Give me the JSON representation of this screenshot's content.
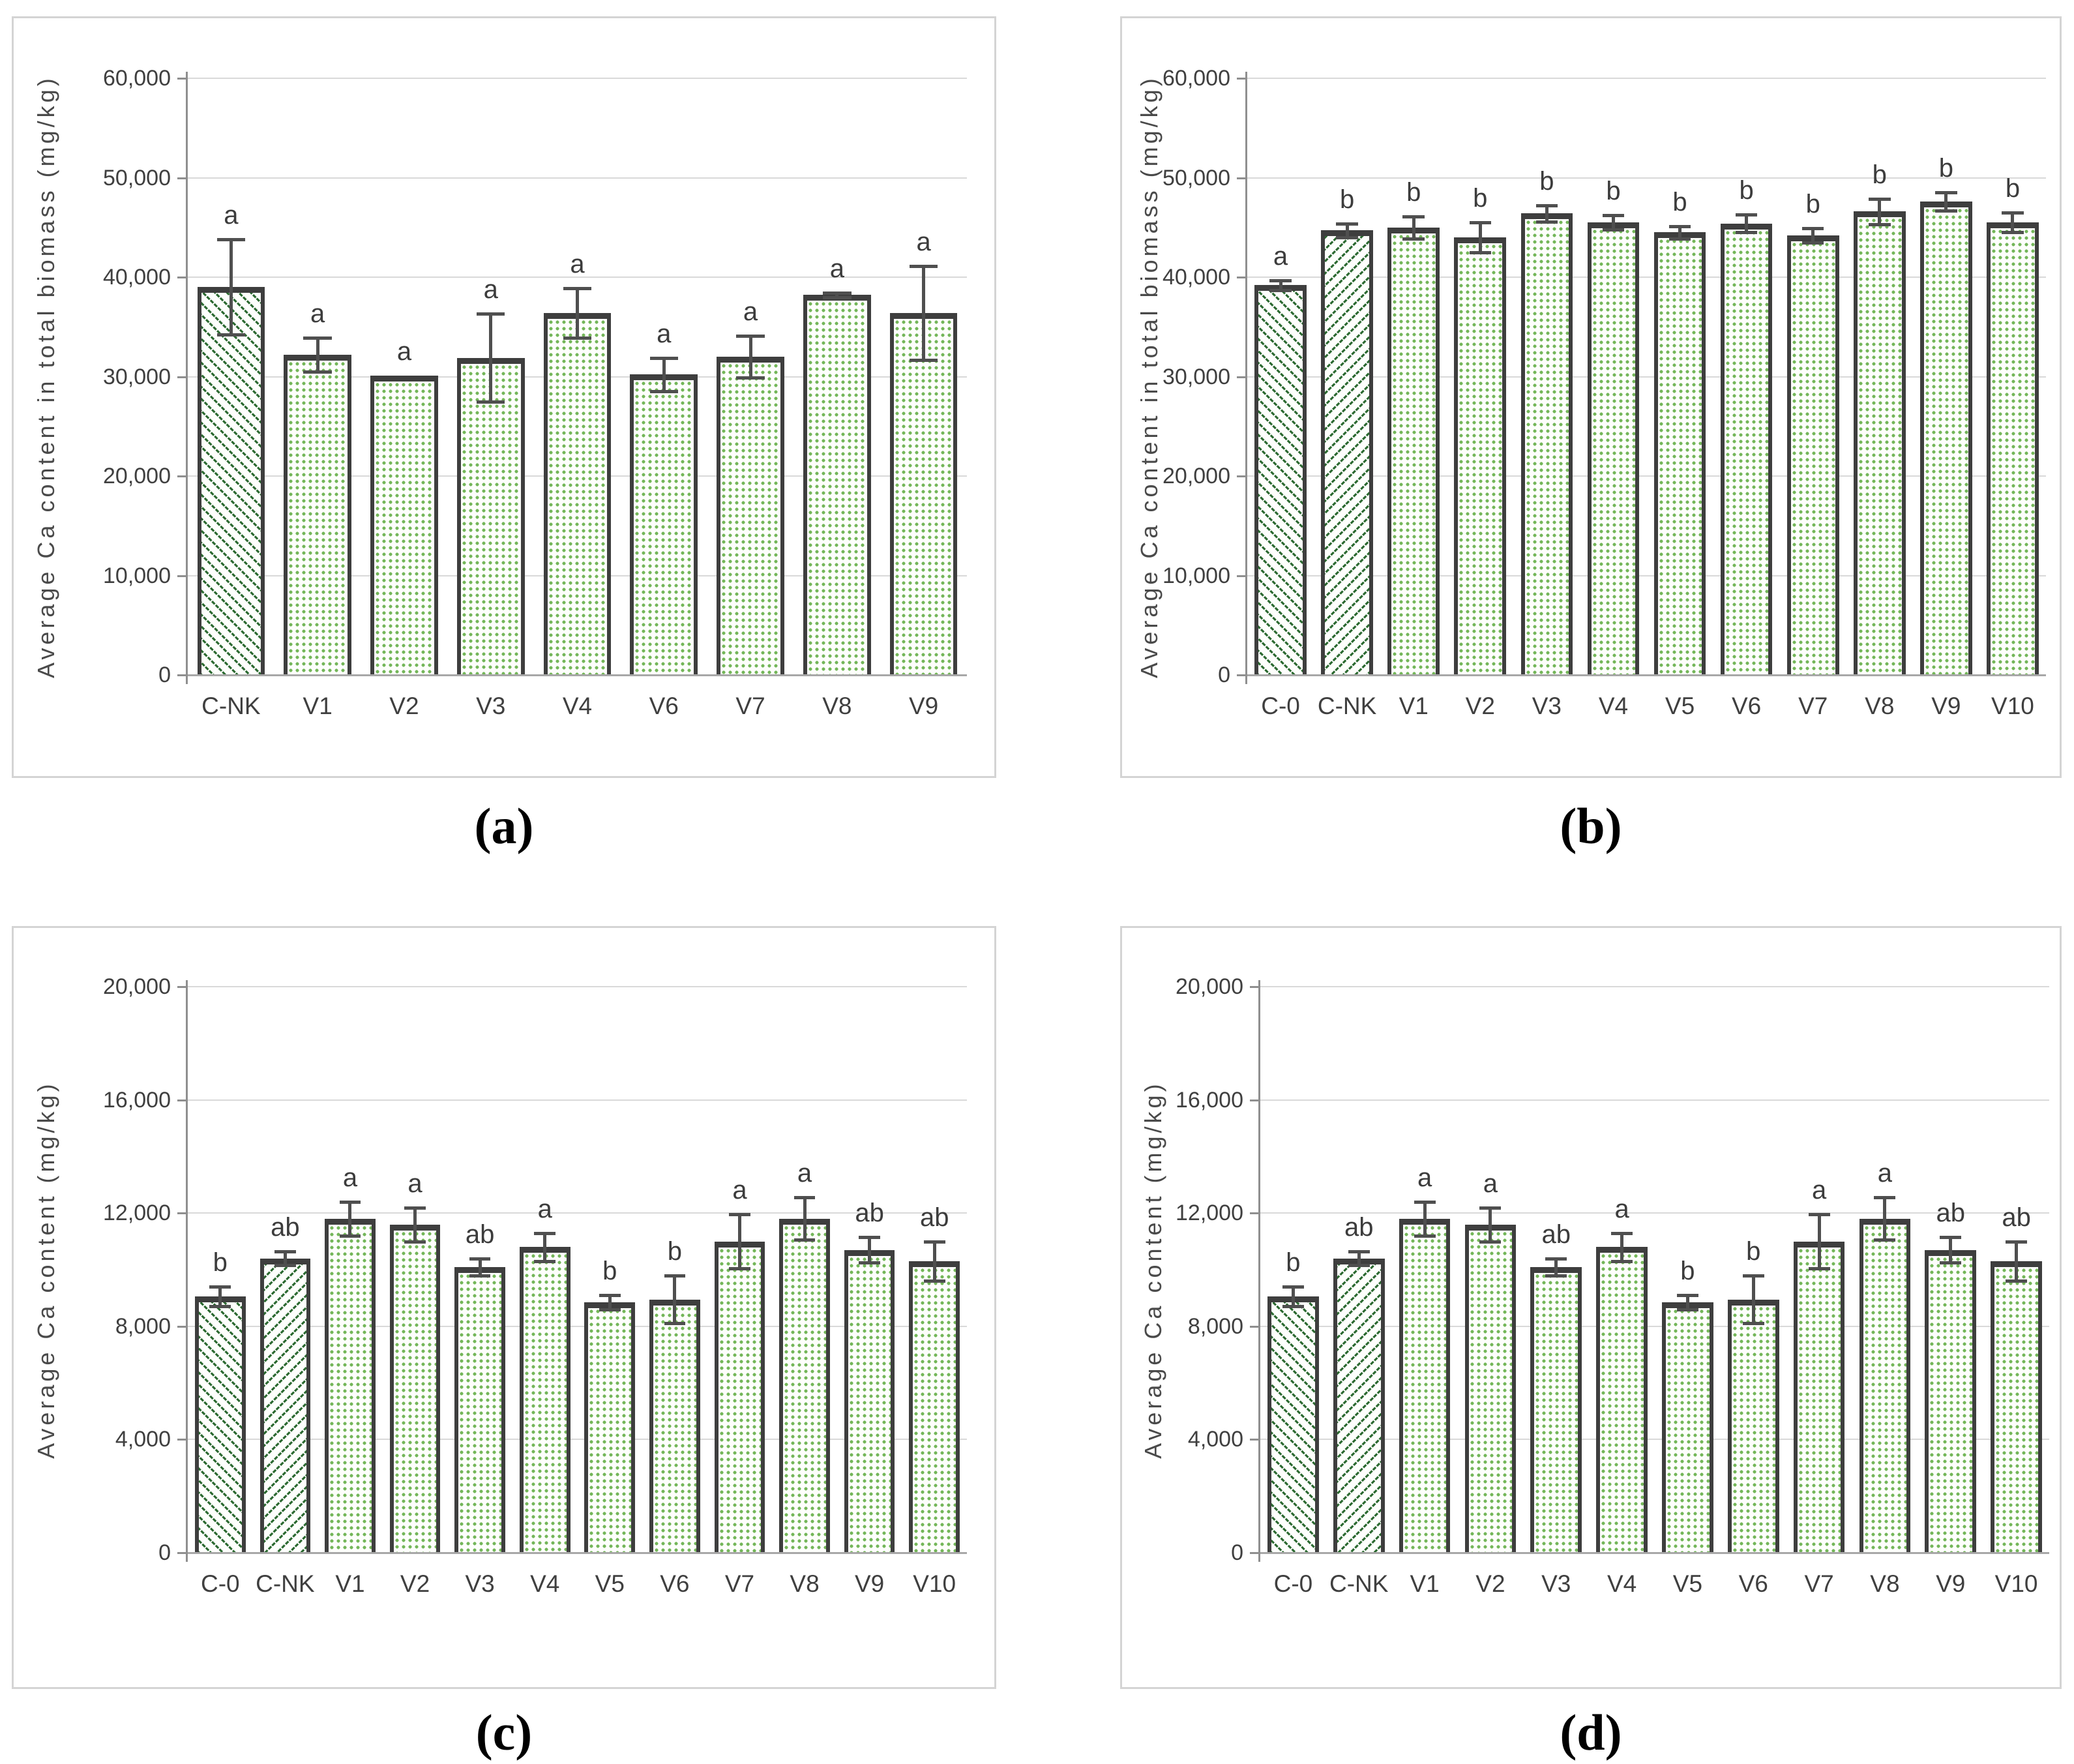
{
  "colors": {
    "bar_border": "#3e3e3e",
    "bar_background": "#fdfefb",
    "dot_green": "#74b659",
    "hatch_green": "#2c6a31",
    "error_bar": "#4f4f4f",
    "gridline": "#d9d9d9",
    "baseline": "#a8a8a8",
    "axis": "#8f8f8f",
    "tick_text": "#3f3f3f",
    "letter_text": "#3c3c3c",
    "panel_border": "#d4d4d4",
    "caption_text": "#000000"
  },
  "chart_data": [
    {
      "id": "a",
      "caption": "(a)",
      "type": "bar",
      "title": "",
      "xlabel": "",
      "ylabel": "Average Ca content in total biomass (mg/kg)",
      "ylim": [
        0,
        60000
      ],
      "ytick_step": 10000,
      "grid": true,
      "legend": "none",
      "categories": [
        "C-NK",
        "V1",
        "V2",
        "V3",
        "V4",
        "V6",
        "V7",
        "V8",
        "V9"
      ],
      "values": [
        39000,
        32200,
        30100,
        31900,
        36400,
        30200,
        32000,
        38200,
        36400
      ],
      "errors": [
        4800,
        1700,
        0,
        4400,
        2500,
        1700,
        2100,
        200,
        4700
      ],
      "letters": [
        "a",
        "a",
        "a",
        "a",
        "a",
        "a",
        "a",
        "a",
        "a"
      ],
      "bar_patterns": [
        "hatch-down",
        "dots",
        "dots",
        "dots",
        "dots",
        "dots",
        "dots",
        "dots",
        "dots"
      ]
    },
    {
      "id": "b",
      "caption": "(b)",
      "type": "bar",
      "title": "",
      "xlabel": "",
      "ylabel": "Average Ca content in total biomass (mg/kg)",
      "ylim": [
        0,
        60000
      ],
      "ytick_step": 10000,
      "grid": true,
      "legend": "none",
      "categories": [
        "C-0",
        "C-NK",
        "V1",
        "V2",
        "V3",
        "V4",
        "V5",
        "V6",
        "V7",
        "V8",
        "V9",
        "V10"
      ],
      "values": [
        39200,
        44700,
        45000,
        44000,
        46400,
        45500,
        44500,
        45400,
        44200,
        46600,
        47600,
        45500
      ],
      "errors": [
        500,
        700,
        1100,
        1500,
        800,
        700,
        600,
        900,
        700,
        1300,
        900,
        1000
      ],
      "letters": [
        "a",
        "b",
        "b",
        "b",
        "b",
        "b",
        "b",
        "b",
        "b",
        "b",
        "b",
        "b"
      ],
      "bar_patterns": [
        "hatch-down",
        "hatch-up",
        "dots",
        "dots",
        "dots",
        "dots",
        "dots",
        "dots",
        "dots",
        "dots",
        "dots",
        "dots"
      ]
    },
    {
      "id": "c",
      "caption": "(c)",
      "type": "bar",
      "title": "",
      "xlabel": "",
      "ylabel": "Average Ca content (mg/kg)",
      "ylim": [
        0,
        20000
      ],
      "ytick_step": 4000,
      "grid": true,
      "legend": "none",
      "categories": [
        "C-0",
        "C-NK",
        "V1",
        "V2",
        "V3",
        "V4",
        "V5",
        "V6",
        "V7",
        "V8",
        "V9",
        "V10"
      ],
      "values": [
        9050,
        10400,
        11800,
        11600,
        10100,
        10800,
        8850,
        8950,
        11000,
        11800,
        10700,
        10300
      ],
      "errors": [
        350,
        250,
        600,
        600,
        300,
        500,
        250,
        850,
        950,
        750,
        450,
        700
      ],
      "letters": [
        "b",
        "ab",
        "a",
        "a",
        "ab",
        "a",
        "b",
        "b",
        "a",
        "a",
        "ab",
        "ab"
      ],
      "bar_patterns": [
        "hatch-down",
        "hatch-up",
        "dots",
        "dots",
        "dots",
        "dots",
        "dots",
        "dots",
        "dots",
        "dots",
        "dots",
        "dots"
      ]
    },
    {
      "id": "d",
      "caption": "(d)",
      "type": "bar",
      "title": "",
      "xlabel": "",
      "ylabel": "Average Ca content (mg/kg)",
      "ylim": [
        0,
        20000
      ],
      "ytick_step": 4000,
      "grid": true,
      "legend": "none",
      "categories": [
        "C-0",
        "C-NK",
        "V1",
        "V2",
        "V3",
        "V4",
        "V5",
        "V6",
        "V7",
        "V8",
        "V9",
        "V10"
      ],
      "values": [
        9050,
        10400,
        11800,
        11600,
        10100,
        10800,
        8850,
        8950,
        11000,
        11800,
        10700,
        10300
      ],
      "errors": [
        350,
        250,
        600,
        600,
        300,
        500,
        250,
        850,
        950,
        750,
        450,
        700
      ],
      "letters": [
        "b",
        "ab",
        "a",
        "a",
        "ab",
        "a",
        "b",
        "b",
        "a",
        "a",
        "ab",
        "ab"
      ],
      "bar_patterns": [
        "hatch-down",
        "hatch-up",
        "dots",
        "dots",
        "dots",
        "dots",
        "dots",
        "dots",
        "dots",
        "dots",
        "dots",
        "dots"
      ]
    }
  ]
}
